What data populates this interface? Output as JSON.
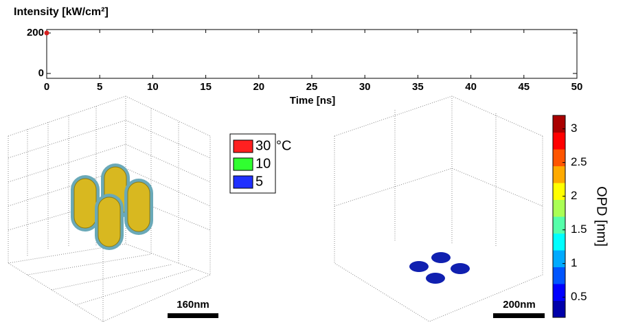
{
  "chart_data": [
    {
      "type": "line",
      "title": "Intensity [kW/cm²]",
      "xlabel": "Time [ns]",
      "x": [
        0
      ],
      "series": [
        {
          "values": [
            200
          ],
          "color": "#d62020"
        }
      ],
      "xlim": [
        0,
        50
      ],
      "xticks": [
        0,
        5,
        10,
        15,
        20,
        25,
        30,
        35,
        40,
        45,
        50
      ],
      "ylim": [
        -24,
        217
      ],
      "yticks": [
        0,
        200
      ]
    },
    {
      "type": "colorbar",
      "label": "OPD [nm]",
      "ylim": [
        0.2,
        3.2
      ],
      "yticks": [
        0.5,
        1,
        1.5,
        2,
        2.5,
        3
      ]
    }
  ],
  "isosurface_legend": {
    "unit": "°C",
    "entries": [
      {
        "label": "30",
        "color": "#ff2020"
      },
      {
        "label": "10",
        "color": "#30ff30"
      },
      {
        "label": "5",
        "color": "#2030ff"
      }
    ]
  },
  "scale_bars": [
    "160nm",
    "200nm"
  ]
}
